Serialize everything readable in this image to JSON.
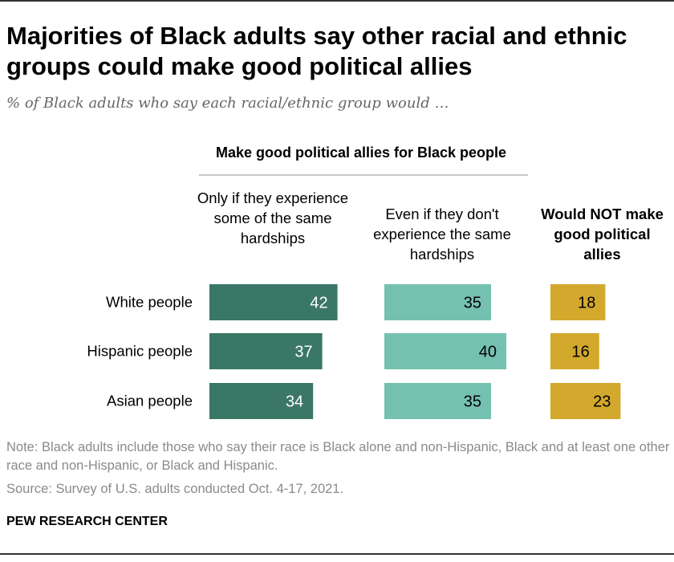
{
  "title": "Majorities of Black adults say other racial and ethnic groups could make good political allies",
  "subtitle": "% of Black adults who say each racial/ethnic group would …",
  "group_header": "Make good political allies for Black people",
  "columns": [
    {
      "label": "Only if they experience some of the same hardships",
      "color": "#3a7766",
      "text_color": "#ffffff",
      "bold": false
    },
    {
      "label": "Even if they don't experience the same hardships",
      "color": "#75c1b0",
      "text_color": "#000000",
      "bold": false
    },
    {
      "label": "Would NOT make good political allies",
      "color": "#d2a82d",
      "text_color": "#000000",
      "bold": true
    }
  ],
  "chart_data": {
    "type": "bar",
    "orientation": "horizontal",
    "categories": [
      "White people",
      "Hispanic people",
      "Asian people"
    ],
    "series": [
      {
        "name": "Only if they experience some of the same hardships",
        "values": [
          42,
          37,
          34
        ]
      },
      {
        "name": "Even if they don't experience the same hardships",
        "values": [
          35,
          40,
          35
        ]
      },
      {
        "name": "Would NOT make good political allies",
        "values": [
          18,
          16,
          23
        ]
      }
    ],
    "grouping": "Make good political allies for Black people",
    "unit": "%"
  },
  "note": "Note: Black adults include those who say their race is Black alone and non-Hispanic, Black and at least one other race and non-Hispanic, or Black and Hispanic.",
  "source": "Source: Survey of U.S. adults conducted Oct. 4-17, 2021.",
  "brand": "PEW RESEARCH CENTER"
}
